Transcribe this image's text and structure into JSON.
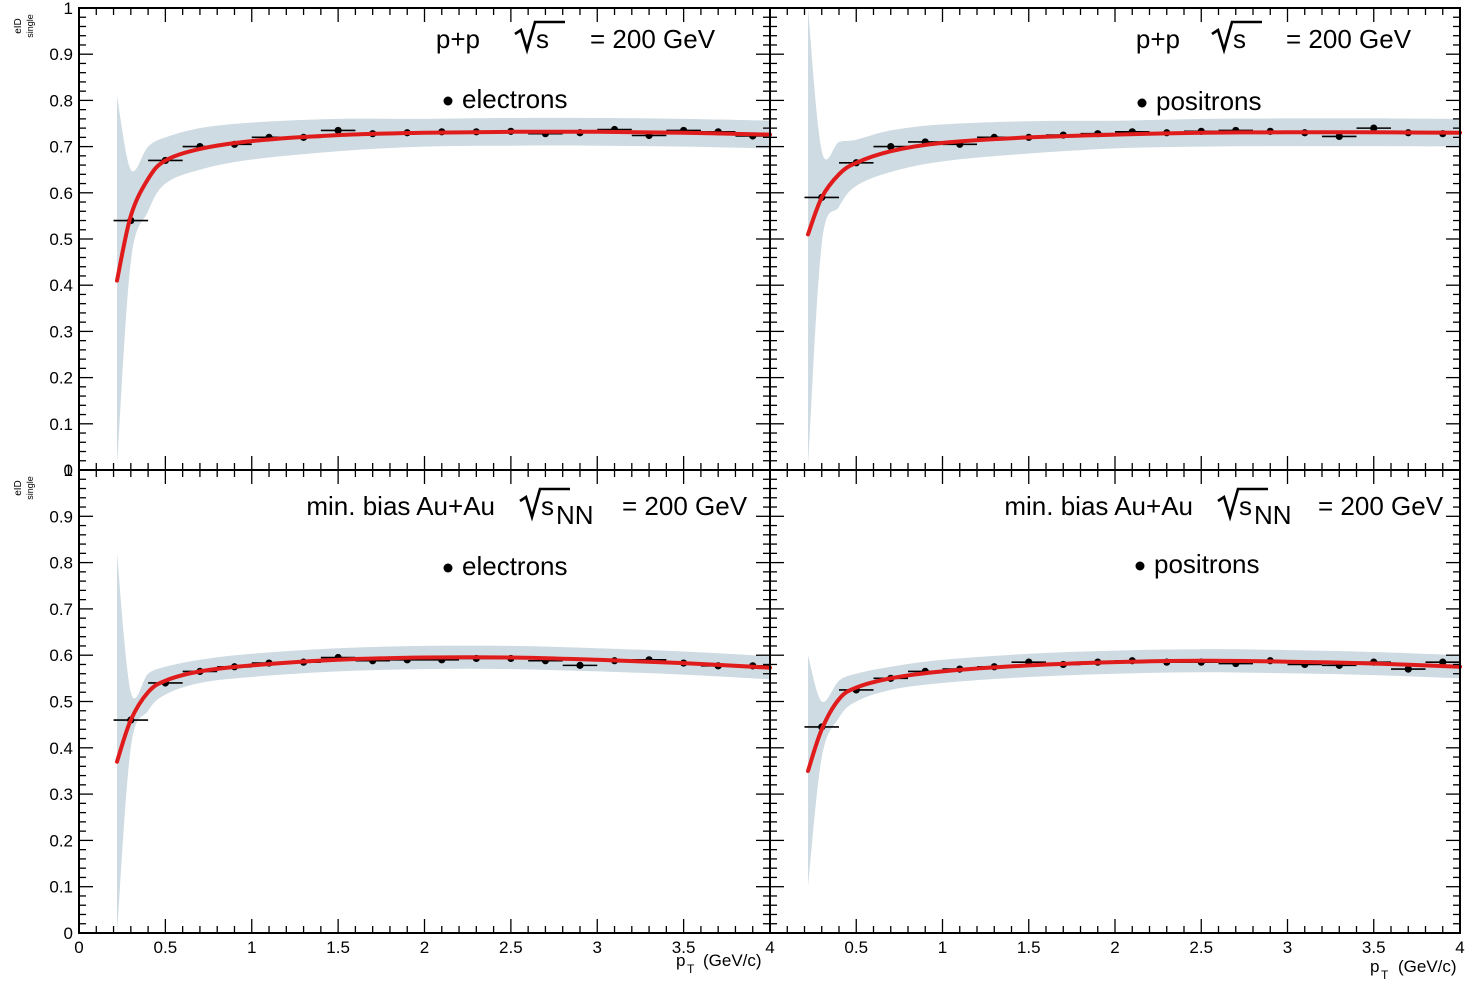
{
  "figure": {
    "ylabel_main": "eID",
    "ylabel_sub": "single",
    "xlabel_main": "p",
    "xlabel_sub": "T",
    "xlabel_unit": "(GeV/c)"
  },
  "colors": {
    "band": "#cfdbe2",
    "fit": "#e01b1b",
    "points": "#000000"
  },
  "chart_data": [
    {
      "type": "scatter",
      "panel": "top-left",
      "system": "p+p",
      "energy_sub": "",
      "energy_value": "= 200 GeV",
      "species": "electrons",
      "xlim": [
        0,
        4
      ],
      "ylim": [
        0,
        1
      ],
      "x": [
        0.3,
        0.5,
        0.7,
        0.9,
        1.1,
        1.3,
        1.5,
        1.7,
        1.9,
        2.1,
        2.3,
        2.5,
        2.7,
        2.9,
        3.1,
        3.3,
        3.5,
        3.7,
        3.9
      ],
      "y": [
        0.54,
        0.67,
        0.7,
        0.705,
        0.72,
        0.72,
        0.735,
        0.728,
        0.73,
        0.732,
        0.732,
        0.733,
        0.728,
        0.73,
        0.737,
        0.724,
        0.735,
        0.732,
        0.723
      ],
      "fit": {
        "x": [
          0.22,
          0.3,
          0.4,
          0.5,
          0.7,
          1.0,
          1.5,
          2.0,
          2.5,
          3.0,
          3.5,
          4.0
        ],
        "y": [
          0.41,
          0.55,
          0.63,
          0.67,
          0.695,
          0.712,
          0.725,
          0.73,
          0.732,
          0.732,
          0.73,
          0.726
        ]
      },
      "band_halfwidth": [
        0.4,
        0.1,
        0.07,
        0.05,
        0.045,
        0.04,
        0.035,
        0.03,
        0.03,
        0.03,
        0.03,
        0.03
      ]
    },
    {
      "type": "scatter",
      "panel": "top-right",
      "system": "p+p",
      "energy_sub": "",
      "energy_value": "= 200 GeV",
      "species": "positrons",
      "xlim": [
        0,
        4
      ],
      "ylim": [
        0,
        1
      ],
      "x": [
        0.3,
        0.5,
        0.7,
        0.9,
        1.1,
        1.3,
        1.5,
        1.7,
        1.9,
        2.1,
        2.3,
        2.5,
        2.7,
        2.9,
        3.1,
        3.3,
        3.5,
        3.7,
        3.9
      ],
      "y": [
        0.59,
        0.665,
        0.7,
        0.71,
        0.705,
        0.72,
        0.72,
        0.725,
        0.728,
        0.732,
        0.73,
        0.733,
        0.735,
        0.733,
        0.73,
        0.722,
        0.74,
        0.73,
        0.728
      ],
      "fit": {
        "x": [
          0.22,
          0.3,
          0.4,
          0.5,
          0.7,
          1.0,
          1.5,
          2.0,
          2.5,
          3.0,
          3.5,
          4.0
        ],
        "y": [
          0.51,
          0.59,
          0.64,
          0.665,
          0.69,
          0.708,
          0.72,
          0.726,
          0.73,
          0.731,
          0.731,
          0.73
        ]
      },
      "band_halfwidth": [
        0.5,
        0.1,
        0.07,
        0.05,
        0.045,
        0.04,
        0.035,
        0.03,
        0.03,
        0.03,
        0.03,
        0.03
      ]
    },
    {
      "type": "scatter",
      "panel": "bottom-left",
      "system": "min. bias Au+Au",
      "energy_sub": "NN",
      "energy_value": "= 200 GeV",
      "species": "electrons",
      "xlim": [
        0,
        4
      ],
      "ylim": [
        0,
        1
      ],
      "x": [
        0.3,
        0.5,
        0.7,
        0.9,
        1.1,
        1.3,
        1.5,
        1.7,
        1.9,
        2.1,
        2.3,
        2.5,
        2.7,
        2.9,
        3.1,
        3.3,
        3.5,
        3.7,
        3.9
      ],
      "y": [
        0.46,
        0.54,
        0.565,
        0.575,
        0.583,
        0.585,
        0.595,
        0.588,
        0.59,
        0.59,
        0.593,
        0.593,
        0.588,
        0.578,
        0.588,
        0.59,
        0.583,
        0.577,
        0.577
      ],
      "fit": {
        "x": [
          0.22,
          0.3,
          0.4,
          0.5,
          0.7,
          1.0,
          1.5,
          2.0,
          2.5,
          3.0,
          3.5,
          4.0
        ],
        "y": [
          0.37,
          0.46,
          0.52,
          0.545,
          0.565,
          0.578,
          0.59,
          0.595,
          0.595,
          0.59,
          0.583,
          0.573
        ]
      },
      "band_halfwidth": [
        0.45,
        0.06,
        0.04,
        0.03,
        0.025,
        0.025,
        0.025,
        0.025,
        0.025,
        0.025,
        0.025,
        0.025
      ]
    },
    {
      "type": "scatter",
      "panel": "bottom-right",
      "system": "min. bias Au+Au",
      "energy_sub": "NN",
      "energy_value": "= 200 GeV",
      "species": "positrons",
      "xlim": [
        0,
        4
      ],
      "ylim": [
        0,
        1
      ],
      "x": [
        0.3,
        0.5,
        0.7,
        0.9,
        1.1,
        1.3,
        1.5,
        1.7,
        1.9,
        2.1,
        2.3,
        2.5,
        2.7,
        2.9,
        3.1,
        3.3,
        3.5,
        3.7,
        3.9
      ],
      "y": [
        0.445,
        0.525,
        0.55,
        0.565,
        0.57,
        0.575,
        0.585,
        0.58,
        0.585,
        0.588,
        0.585,
        0.585,
        0.582,
        0.588,
        0.58,
        0.578,
        0.585,
        0.57,
        0.585
      ],
      "fit": {
        "x": [
          0.22,
          0.3,
          0.4,
          0.5,
          0.7,
          1.0,
          1.5,
          2.0,
          2.5,
          3.0,
          3.5,
          4.0
        ],
        "y": [
          0.35,
          0.44,
          0.505,
          0.53,
          0.55,
          0.565,
          0.578,
          0.585,
          0.588,
          0.586,
          0.582,
          0.575
        ]
      },
      "band_halfwidth": [
        0.25,
        0.06,
        0.04,
        0.03,
        0.025,
        0.025,
        0.025,
        0.025,
        0.025,
        0.025,
        0.025,
        0.025
      ]
    }
  ]
}
